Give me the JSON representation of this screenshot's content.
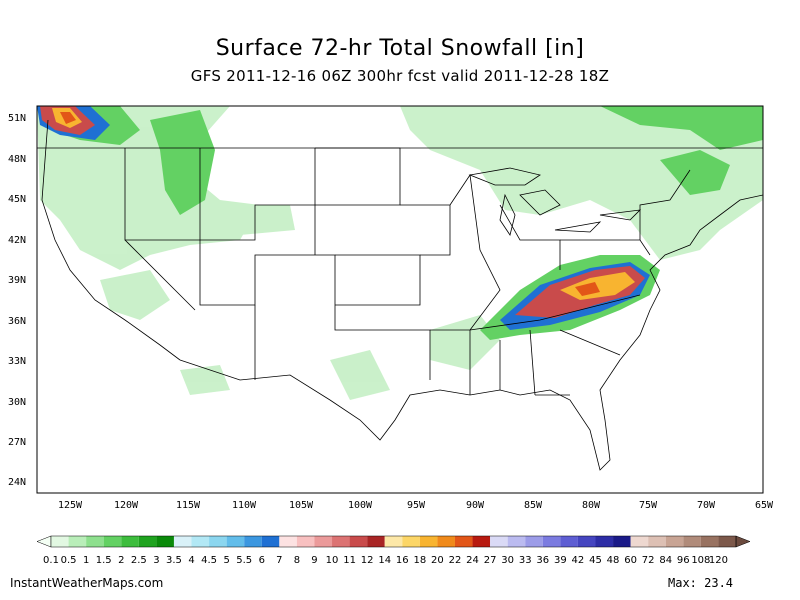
{
  "title": "Surface 72-hr Total Snowfall [in]",
  "subtitle": "GFS 2011-12-16 06Z 300hr fcst valid 2011-12-28 18Z",
  "lat_labels": [
    "51N",
    "48N",
    "45N",
    "42N",
    "39N",
    "36N",
    "33N",
    "30N",
    "27N",
    "24N"
  ],
  "lon_labels": [
    "125W",
    "120W",
    "115W",
    "110W",
    "105W",
    "100W",
    "95W",
    "90W",
    "85W",
    "80W",
    "75W",
    "70W",
    "65W"
  ],
  "scale_labels": [
    "0.1",
    "0.5",
    "1",
    "1.5",
    "2",
    "2.5",
    "3",
    "3.5",
    "4",
    "4.5",
    "5",
    "5.5",
    "6",
    "7",
    "8",
    "9",
    "10",
    "11",
    "12",
    "14",
    "16",
    "18",
    "20",
    "22",
    "24",
    "27",
    "30",
    "33",
    "36",
    "39",
    "42",
    "45",
    "48",
    "60",
    "72",
    "84",
    "96",
    "108",
    "120"
  ],
  "scale_colors": [
    "#e2f8e2",
    "#b9eeb9",
    "#8ee08e",
    "#63d163",
    "#3dbd3d",
    "#1fa31f",
    "#0a8a0a",
    "#d9f1f8",
    "#b2e8f5",
    "#8bd6ef",
    "#62bdea",
    "#3b97e0",
    "#1f70d3",
    "#fde2e2",
    "#f8c0c0",
    "#eb9a9a",
    "#dc7373",
    "#c94b4b",
    "#a92525",
    "#fde8a8",
    "#fcd667",
    "#f8b430",
    "#f08a1b",
    "#e25618",
    "#b81a10",
    "#dadaf6",
    "#bbbbf0",
    "#9c9ce8",
    "#7b7be0",
    "#5e5ed3",
    "#4545c0",
    "#2d2da6",
    "#1a1a88",
    "#eed8d0",
    "#ddc0b4",
    "#c8a494",
    "#b08b7a",
    "#987261",
    "#7c584a"
  ],
  "footer_left": "InstantWeatherMaps.com",
  "footer_right": "Max:  23.4"
}
